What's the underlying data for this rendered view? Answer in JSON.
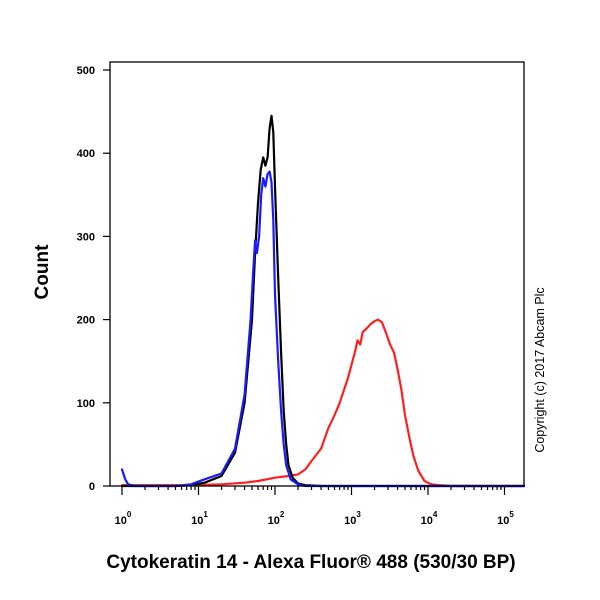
{
  "chart_data": {
    "type": "line",
    "title": "",
    "xlabel": "Cytokeratin 14 - Alexa Fluor® 488 (530/30 BP)",
    "ylabel": "Count",
    "xscale": "log",
    "xlim": [
      1,
      200000
    ],
    "ylim": [
      0,
      500
    ],
    "yticks": [
      0,
      100,
      200,
      300,
      400,
      500
    ],
    "xticks": [
      {
        "value": 1,
        "base": "10",
        "exp": "0"
      },
      {
        "value": 10,
        "base": "10",
        "exp": "1"
      },
      {
        "value": 100,
        "base": "10",
        "exp": "2"
      },
      {
        "value": 1000,
        "base": "10",
        "exp": "3"
      },
      {
        "value": 10000,
        "base": "10",
        "exp": "4"
      },
      {
        "value": 100000,
        "base": "10",
        "exp": "5"
      }
    ],
    "grid": false,
    "legend": "none",
    "annotation": "Copyright (c) 2017 Abcam Plc",
    "series": [
      {
        "color": "#ff1f1f",
        "points": [
          [
            1,
            1
          ],
          [
            8,
            1
          ],
          [
            20,
            2
          ],
          [
            40,
            4
          ],
          [
            60,
            6
          ],
          [
            100,
            10
          ],
          [
            150,
            12
          ],
          [
            200,
            14
          ],
          [
            250,
            20
          ],
          [
            300,
            30
          ],
          [
            400,
            45
          ],
          [
            500,
            70
          ],
          [
            600,
            85
          ],
          [
            700,
            100
          ],
          [
            900,
            130
          ],
          [
            1100,
            160
          ],
          [
            1200,
            175
          ],
          [
            1300,
            170
          ],
          [
            1400,
            185
          ],
          [
            1600,
            190
          ],
          [
            1800,
            195
          ],
          [
            2000,
            198
          ],
          [
            2200,
            200
          ],
          [
            2500,
            197
          ],
          [
            2800,
            185
          ],
          [
            3200,
            170
          ],
          [
            3600,
            160
          ],
          [
            4000,
            140
          ],
          [
            4500,
            115
          ],
          [
            5000,
            85
          ],
          [
            5800,
            55
          ],
          [
            6500,
            35
          ],
          [
            7500,
            18
          ],
          [
            9000,
            6
          ],
          [
            11000,
            2
          ],
          [
            14000,
            1
          ],
          [
            20000,
            0
          ],
          [
            200000,
            0
          ]
        ]
      },
      {
        "color": "#000000",
        "points": [
          [
            1,
            0
          ],
          [
            5,
            0
          ],
          [
            8,
            1
          ],
          [
            12,
            4
          ],
          [
            20,
            12
          ],
          [
            30,
            40
          ],
          [
            40,
            100
          ],
          [
            50,
            200
          ],
          [
            55,
            280
          ],
          [
            60,
            340
          ],
          [
            65,
            380
          ],
          [
            70,
            395
          ],
          [
            75,
            385
          ],
          [
            80,
            395
          ],
          [
            85,
            430
          ],
          [
            90,
            445
          ],
          [
            95,
            425
          ],
          [
            100,
            360
          ],
          [
            110,
            250
          ],
          [
            120,
            160
          ],
          [
            130,
            90
          ],
          [
            140,
            50
          ],
          [
            150,
            25
          ],
          [
            170,
            10
          ],
          [
            200,
            3
          ],
          [
            250,
            1
          ],
          [
            400,
            0
          ],
          [
            200000,
            0
          ]
        ]
      },
      {
        "color": "#1a1aff",
        "points": [
          [
            1,
            20
          ],
          [
            1.1,
            8
          ],
          [
            1.2,
            2
          ],
          [
            1.5,
            0
          ],
          [
            5,
            0
          ],
          [
            8,
            2
          ],
          [
            12,
            8
          ],
          [
            20,
            15
          ],
          [
            30,
            45
          ],
          [
            40,
            110
          ],
          [
            48,
            200
          ],
          [
            52,
            260
          ],
          [
            55,
            295
          ],
          [
            58,
            280
          ],
          [
            62,
            300
          ],
          [
            66,
            350
          ],
          [
            70,
            370
          ],
          [
            75,
            360
          ],
          [
            80,
            375
          ],
          [
            85,
            378
          ],
          [
            90,
            365
          ],
          [
            95,
            320
          ],
          [
            100,
            230
          ],
          [
            110,
            150
          ],
          [
            120,
            90
          ],
          [
            130,
            50
          ],
          [
            140,
            25
          ],
          [
            160,
            8
          ],
          [
            200,
            2
          ],
          [
            250,
            0
          ],
          [
            200000,
            0
          ]
        ]
      }
    ]
  }
}
